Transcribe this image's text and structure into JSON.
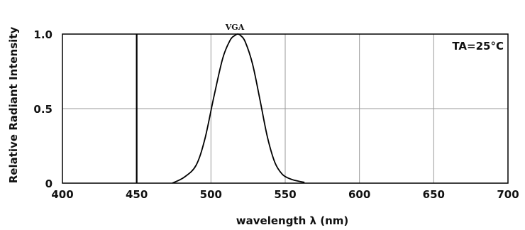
{
  "chart_data": {
    "type": "line",
    "title": "",
    "xlabel": "wavelength λ (nm)",
    "ylabel": "Relative Radiant Intensity",
    "xlim": [
      400,
      700
    ],
    "ylim": [
      0,
      1.0
    ],
    "x_ticks": [
      400,
      450,
      500,
      550,
      600,
      650,
      700
    ],
    "y_ticks": [
      0,
      0.5,
      1.0
    ],
    "y_tick_labels": [
      "0",
      "0.5",
      "1.0"
    ],
    "grid": true,
    "legend": "none",
    "annotation": "TA=25°C",
    "series": [
      {
        "name": "VGA",
        "color": "#000000",
        "x": [
          474,
          482,
          490,
          496,
          502,
          508,
          513,
          516,
          518,
          520,
          523,
          528,
          533,
          538,
          543,
          548,
          553,
          558,
          563
        ],
        "y": [
          0.0,
          0.04,
          0.12,
          0.3,
          0.58,
          0.84,
          0.96,
          0.99,
          1.0,
          0.99,
          0.95,
          0.8,
          0.56,
          0.31,
          0.14,
          0.06,
          0.03,
          0.015,
          0.005
        ]
      }
    ]
  }
}
